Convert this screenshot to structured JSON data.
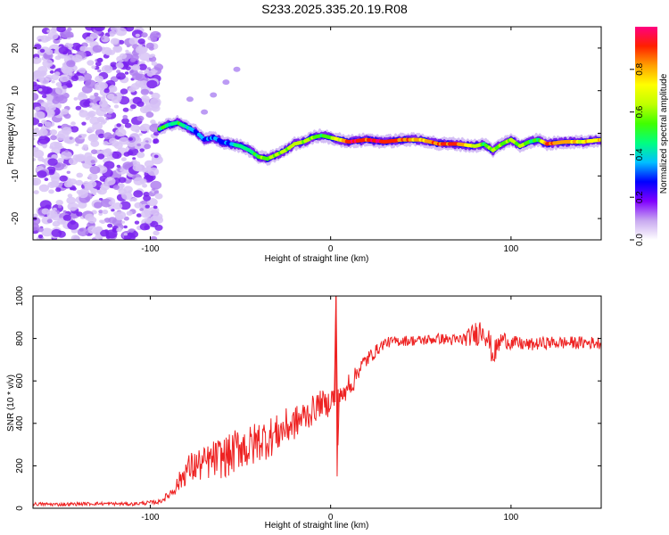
{
  "title": "S233.2025.335.20.19.R08",
  "colors": {
    "snr_line": "#ee2222",
    "axis": "#000000",
    "background": "#ffffff"
  },
  "chart_data": [
    {
      "type": "heatmap",
      "name": "spectrogram",
      "xlabel": "Height of straight line (km)",
      "ylabel": "Frequency (Hz)",
      "xlim": [
        -165,
        150
      ],
      "ylim": [
        -25,
        25
      ],
      "xticks": [
        -100,
        0,
        100
      ],
      "xtick_labels": [
        "-100",
        "0",
        "100"
      ],
      "yticks": [
        -20,
        -10,
        0,
        10,
        20
      ],
      "ytick_labels": [
        "-20",
        "-10",
        "0",
        "10",
        "20"
      ],
      "noise_region_x": [
        -165,
        -95
      ],
      "ridge": {
        "x": [
          -95,
          -90,
          -85,
          -80,
          -75,
          -70,
          -65,
          -60,
          -55,
          -50,
          -45,
          -40,
          -35,
          -30,
          -25,
          -20,
          -15,
          -10,
          -5,
          0,
          5,
          10,
          20,
          30,
          40,
          50,
          60,
          70,
          80,
          85,
          90,
          95,
          100,
          105,
          110,
          115,
          120,
          130,
          140,
          150
        ],
        "y": [
          1,
          2,
          2.5,
          1.5,
          0.5,
          -1.5,
          -1,
          -2,
          -2.5,
          -3,
          -4,
          -5.5,
          -6,
          -5,
          -4,
          -2.5,
          -2,
          -1,
          -0.5,
          -1,
          -1.5,
          -2,
          -1.5,
          -2,
          -1.5,
          -1.5,
          -2.5,
          -2.5,
          -3,
          -2.5,
          -4,
          -2.5,
          -1.5,
          -3,
          -2,
          -1.5,
          -2.5,
          -2,
          -2,
          -1.5
        ],
        "amplitude": [
          0.5,
          0.45,
          0.5,
          0.4,
          0.3,
          0.3,
          0.35,
          0.3,
          0.3,
          0.5,
          0.45,
          0.55,
          0.6,
          0.6,
          0.6,
          0.65,
          0.6,
          0.6,
          0.5,
          0.6,
          0.7,
          0.95,
          0.9,
          0.95,
          0.85,
          0.8,
          0.85,
          0.9,
          0.6,
          0.55,
          0.6,
          0.55,
          0.6,
          0.6,
          0.55,
          0.5,
          0.9,
          0.8,
          0.7,
          0.8
        ]
      },
      "colorbar": {
        "label": "Normalized spectral amplitude",
        "range": [
          0,
          1
        ],
        "ticks": [
          0.0,
          0.2,
          0.4,
          0.6,
          0.8
        ],
        "tick_labels": [
          "0.0",
          "0.2",
          "0.4",
          "0.6",
          "0.8"
        ],
        "colors": [
          "#ffffff",
          "#c8a8f0",
          "#8000ff",
          "#0000ff",
          "#00c0ff",
          "#00ff80",
          "#40ff00",
          "#c0ff00",
          "#ffff00",
          "#ffa000",
          "#ff2000",
          "#ff0080"
        ]
      }
    },
    {
      "type": "line",
      "name": "snr",
      "xlabel": "Height of straight line (km)",
      "ylabel": "SNR (10 * v/v)",
      "xlim": [
        -165,
        150
      ],
      "ylim": [
        0,
        1000
      ],
      "xticks": [
        -100,
        0,
        100
      ],
      "xtick_labels": [
        "-100",
        "0",
        "100"
      ],
      "yticks": [
        0,
        200,
        400,
        600,
        800,
        1000
      ],
      "ytick_labels": [
        "0",
        "200",
        "400",
        "600",
        "800",
        "1000"
      ],
      "series": [
        {
          "name": "SNR",
          "x": [
            -165,
            -150,
            -130,
            -110,
            -95,
            -90,
            -85,
            -80,
            -75,
            -70,
            -65,
            -60,
            -55,
            -50,
            -45,
            -40,
            -35,
            -30,
            -25,
            -20,
            -15,
            -10,
            -5,
            -2,
            0,
            2,
            3,
            4,
            5,
            8,
            10,
            12,
            15,
            20,
            25,
            30,
            40,
            50,
            60,
            70,
            75,
            80,
            85,
            88,
            90,
            95,
            100,
            110,
            120,
            130,
            140,
            150
          ],
          "y": [
            20,
            18,
            22,
            20,
            30,
            60,
            110,
            180,
            200,
            210,
            230,
            240,
            250,
            300,
            280,
            320,
            330,
            350,
            380,
            400,
            430,
            460,
            500,
            480,
            520,
            520,
            1000,
            300,
            560,
            520,
            600,
            580,
            650,
            700,
            740,
            780,
            790,
            790,
            800,
            790,
            800,
            820,
            850,
            780,
            720,
            800,
            780,
            770,
            780,
            780,
            780,
            780
          ],
          "noise_amplitude": [
            8,
            8,
            8,
            8,
            10,
            20,
            40,
            70,
            80,
            80,
            90,
            100,
            100,
            110,
            110,
            100,
            100,
            90,
            90,
            80,
            80,
            70,
            60,
            60,
            60,
            60,
            40,
            40,
            60,
            50,
            50,
            50,
            45,
            40,
            30,
            25,
            25,
            25,
            25,
            30,
            35,
            60,
            70,
            60,
            60,
            40,
            35,
            30,
            30,
            30,
            30,
            30
          ]
        }
      ]
    }
  ]
}
